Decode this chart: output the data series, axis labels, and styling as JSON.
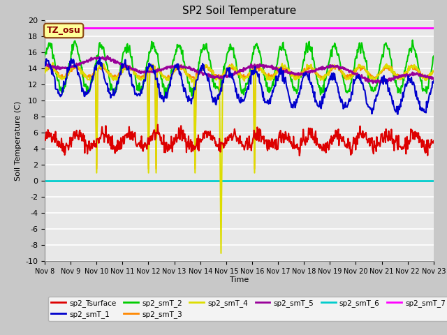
{
  "title": "SP2 Soil Temperature",
  "ylabel": "Soil Temperature (C)",
  "xlabel": "Time",
  "ylim": [
    -10,
    20
  ],
  "x_tick_labels": [
    "Nov 8",
    "Nov 9",
    "Nov 10",
    "Nov 11",
    "Nov 12",
    "Nov 13",
    "Nov 14",
    "Nov 15",
    "Nov 16",
    "Nov 17",
    "Nov 18",
    "Nov 19",
    "Nov 20",
    "Nov 21",
    "Nov 22",
    "Nov 23"
  ],
  "tz_label": "TZ_osu",
  "fig_bg": "#c8c8c8",
  "plot_bg": "#e8e8e8",
  "grid_color": "#ffffff",
  "series_colors": {
    "sp2_Tsurface": "#dd0000",
    "sp2_smT_1": "#0000cc",
    "sp2_smT_2": "#00cc00",
    "sp2_smT_3": "#ff8800",
    "sp2_smT_4": "#dddd00",
    "sp2_smT_5": "#990099",
    "sp2_smT_6": "#00cccc",
    "sp2_smT_7": "#ff00ff"
  },
  "legend_labels": [
    "sp2_Tsurface",
    "sp2_smT_1",
    "sp2_smT_2",
    "sp2_smT_3",
    "sp2_smT_4",
    "sp2_smT_5",
    "sp2_smT_6",
    "sp2_smT_7"
  ]
}
